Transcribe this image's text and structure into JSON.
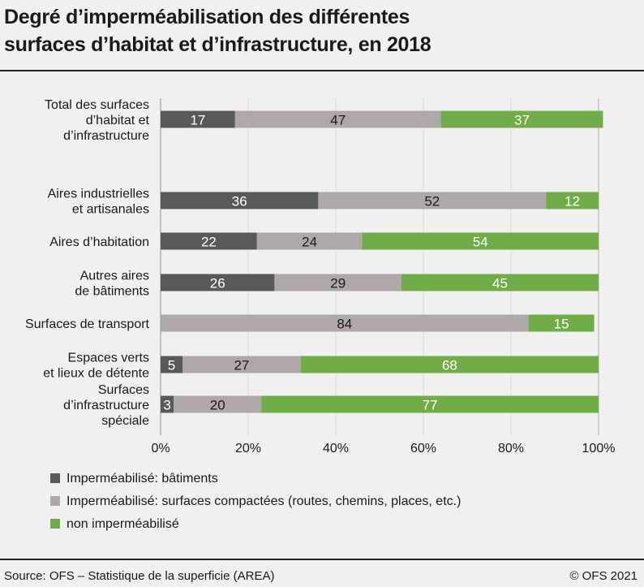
{
  "title_lines": [
    "Degré d’imperméabilisation des différentes",
    "surfaces d’habitat et d’infrastructure,  en 2018"
  ],
  "colors": {
    "batiments": "#595959",
    "compactees": "#ada9a8",
    "non": "#70ad47",
    "background": "#f0f0f0",
    "grid": "#dcdcdc"
  },
  "chart_data": {
    "type": "bar",
    "orientation": "horizontal",
    "stacked": true,
    "categories": [
      [
        "Total des surfaces",
        "d’habitat et",
        "d’infrastructure"
      ],
      [
        "Aires industrielles",
        "et artisanales"
      ],
      [
        "Aires d’habitation"
      ],
      [
        "Autres aires",
        "de bâtiments"
      ],
      [
        "Surfaces de transport"
      ],
      [
        "Espaces verts",
        "et lieux de détente"
      ],
      [
        "Surfaces",
        "d’infrastructure",
        "spéciale"
      ]
    ],
    "series": [
      {
        "name": "Imperméabilisé: bâtiments",
        "color": "#595959",
        "values": [
          17,
          36,
          22,
          26,
          0,
          5,
          3
        ],
        "labels": [
          "17",
          "36",
          "22",
          "26",
          "",
          "5",
          "3"
        ]
      },
      {
        "name": "Imperméabilisé: surfaces compactées (routes, chemins, places, etc.)",
        "color": "#ada9a8",
        "values": [
          47,
          52,
          24,
          29,
          84,
          27,
          20
        ],
        "labels": [
          "47",
          "52",
          "24",
          "29",
          "84",
          "27",
          "20"
        ]
      },
      {
        "name": "non imperméabilisé",
        "color": "#70ad47",
        "values": [
          37,
          12,
          54,
          45,
          15,
          68,
          77
        ],
        "labels": [
          "37",
          "12",
          "54",
          "45",
          "15",
          "68",
          "77"
        ]
      }
    ],
    "xlim": [
      0,
      100
    ],
    "xticks": [
      "0%",
      "20%",
      "40%",
      "60%",
      "80%",
      "100%"
    ],
    "grid": true,
    "legend_position": "bottom"
  },
  "source": "Source: OFS – Statistique de la superficie (AREA)",
  "copyright": "© OFS 2021"
}
